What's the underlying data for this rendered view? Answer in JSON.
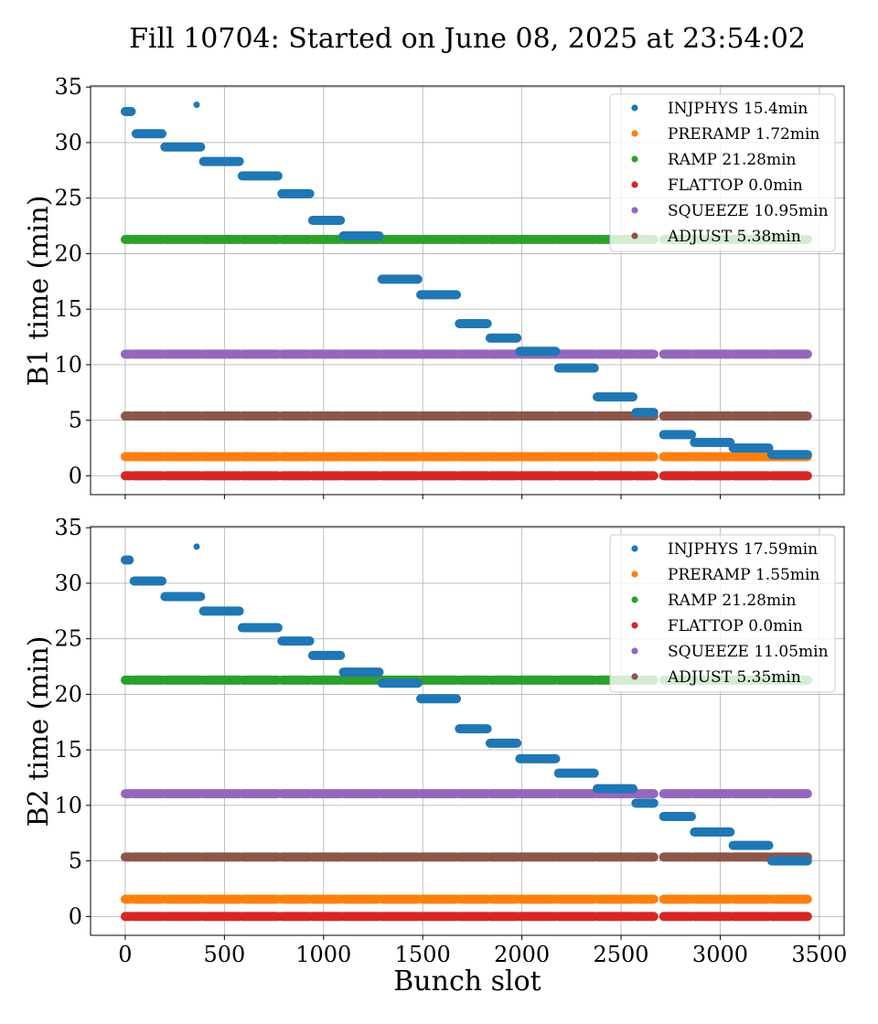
{
  "chart_data": {
    "type": "scatter",
    "title": "Fill 10704: Started on June 08, 2025 at 23:54:02",
    "xlabel": "Bunch slot",
    "xlim": [
      -175,
      3625
    ],
    "xticks": [
      0,
      500,
      1000,
      1500,
      2000,
      2500,
      3000,
      3500
    ],
    "grid": true,
    "legend_position": "top-right",
    "colors": {
      "INJPHYS": "#1f77b4",
      "PRERAMP": "#ff7f0e",
      "RAMP": "#2ca02c",
      "FLATTOP": "#d62728",
      "SQUEEZE": "#9467bd",
      "ADJUST": "#8c564b"
    },
    "panels": [
      {
        "ylabel": "B1 time (min)",
        "ylim": [
          -1.7,
          35.1
        ],
        "yticks": [
          0,
          5,
          10,
          15,
          20,
          25,
          30,
          35
        ],
        "legend": [
          {
            "name": "INJPHYS",
            "label": "INJPHYS 15.4min"
          },
          {
            "name": "PRERAMP",
            "label": "PRERAMP 1.72min"
          },
          {
            "name": "RAMP",
            "label": "RAMP 21.28min"
          },
          {
            "name": "FLATTOP",
            "label": "FLATTOP 0.0min"
          },
          {
            "name": "SQUEEZE",
            "label": "SQUEEZE 10.95min"
          },
          {
            "name": "ADJUST",
            "label": "ADJUST 5.38min"
          }
        ],
        "constant_series": [
          {
            "name": "PRERAMP",
            "y": 1.72
          },
          {
            "name": "RAMP",
            "y": 21.28
          },
          {
            "name": "FLATTOP",
            "y": 0.0
          },
          {
            "name": "SQUEEZE",
            "y": 10.95
          },
          {
            "name": "ADJUST",
            "y": 5.38
          }
        ],
        "injphys_segments": [
          {
            "x0": 0,
            "x1": 30,
            "y": 32.8
          },
          {
            "x0": 55,
            "x1": 185,
            "y": 30.8
          },
          {
            "x0": 200,
            "x1": 380,
            "y": 29.6
          },
          {
            "x0": 395,
            "x1": 575,
            "y": 28.3
          },
          {
            "x0": 590,
            "x1": 770,
            "y": 27.0
          },
          {
            "x0": 790,
            "x1": 930,
            "y": 25.4
          },
          {
            "x0": 945,
            "x1": 1085,
            "y": 23.0
          },
          {
            "x0": 1100,
            "x1": 1280,
            "y": 21.6
          },
          {
            "x0": 1295,
            "x1": 1475,
            "y": 17.7
          },
          {
            "x0": 1490,
            "x1": 1670,
            "y": 16.3
          },
          {
            "x0": 1685,
            "x1": 1825,
            "y": 13.7
          },
          {
            "x0": 1840,
            "x1": 1975,
            "y": 12.4
          },
          {
            "x0": 1990,
            "x1": 2170,
            "y": 11.2
          },
          {
            "x0": 2185,
            "x1": 2365,
            "y": 9.7
          },
          {
            "x0": 2380,
            "x1": 2560,
            "y": 7.1
          },
          {
            "x0": 2575,
            "x1": 2665,
            "y": 5.7
          },
          {
            "x0": 2715,
            "x1": 2855,
            "y": 3.7
          },
          {
            "x0": 2870,
            "x1": 3050,
            "y": 3.0
          },
          {
            "x0": 3065,
            "x1": 3245,
            "y": 2.5
          },
          {
            "x0": 3260,
            "x1": 3440,
            "y": 1.9
          }
        ],
        "injphys_points": [
          {
            "x": 360,
            "y": 33.4
          }
        ]
      },
      {
        "ylabel": "B2 time (min)",
        "ylim": [
          -1.7,
          35.1
        ],
        "yticks": [
          0,
          5,
          10,
          15,
          20,
          25,
          30,
          35
        ],
        "legend": [
          {
            "name": "INJPHYS",
            "label": "INJPHYS 17.59min"
          },
          {
            "name": "PRERAMP",
            "label": "PRERAMP 1.55min"
          },
          {
            "name": "RAMP",
            "label": "RAMP 21.28min"
          },
          {
            "name": "FLATTOP",
            "label": "FLATTOP 0.0min"
          },
          {
            "name": "SQUEEZE",
            "label": "SQUEEZE 11.05min"
          },
          {
            "name": "ADJUST",
            "label": "ADJUST 5.35min"
          }
        ],
        "constant_series": [
          {
            "name": "PRERAMP",
            "y": 1.55
          },
          {
            "name": "RAMP",
            "y": 21.28
          },
          {
            "name": "FLATTOP",
            "y": 0.0
          },
          {
            "name": "SQUEEZE",
            "y": 11.05
          },
          {
            "name": "ADJUST",
            "y": 5.35
          }
        ],
        "injphys_segments": [
          {
            "x0": 0,
            "x1": 20,
            "y": 32.1
          },
          {
            "x0": 45,
            "x1": 185,
            "y": 30.2
          },
          {
            "x0": 200,
            "x1": 380,
            "y": 28.8
          },
          {
            "x0": 395,
            "x1": 575,
            "y": 27.5
          },
          {
            "x0": 590,
            "x1": 770,
            "y": 26.0
          },
          {
            "x0": 790,
            "x1": 930,
            "y": 24.8
          },
          {
            "x0": 945,
            "x1": 1085,
            "y": 23.5
          },
          {
            "x0": 1100,
            "x1": 1280,
            "y": 22.0
          },
          {
            "x0": 1295,
            "x1": 1475,
            "y": 21.0
          },
          {
            "x0": 1490,
            "x1": 1670,
            "y": 19.6
          },
          {
            "x0": 1685,
            "x1": 1825,
            "y": 16.9
          },
          {
            "x0": 1840,
            "x1": 1975,
            "y": 15.6
          },
          {
            "x0": 1990,
            "x1": 2170,
            "y": 14.2
          },
          {
            "x0": 2185,
            "x1": 2365,
            "y": 12.9
          },
          {
            "x0": 2380,
            "x1": 2560,
            "y": 11.5
          },
          {
            "x0": 2575,
            "x1": 2665,
            "y": 10.2
          },
          {
            "x0": 2715,
            "x1": 2855,
            "y": 9.0
          },
          {
            "x0": 2870,
            "x1": 3050,
            "y": 7.6
          },
          {
            "x0": 3065,
            "x1": 3245,
            "y": 6.4
          },
          {
            "x0": 3260,
            "x1": 3440,
            "y": 5.0
          }
        ],
        "injphys_points": [
          {
            "x": 360,
            "y": 33.3
          }
        ]
      }
    ],
    "fill_segments": [
      {
        "x0": 0,
        "x1": 30
      },
      {
        "x0": 45,
        "x1": 185
      },
      {
        "x0": 200,
        "x1": 380
      },
      {
        "x0": 395,
        "x1": 575
      },
      {
        "x0": 590,
        "x1": 770
      },
      {
        "x0": 790,
        "x1": 930
      },
      {
        "x0": 945,
        "x1": 1085
      },
      {
        "x0": 1100,
        "x1": 1280
      },
      {
        "x0": 1295,
        "x1": 1475
      },
      {
        "x0": 1490,
        "x1": 1670
      },
      {
        "x0": 1685,
        "x1": 1825
      },
      {
        "x0": 1840,
        "x1": 1975
      },
      {
        "x0": 1990,
        "x1": 2170
      },
      {
        "x0": 2185,
        "x1": 2365
      },
      {
        "x0": 2380,
        "x1": 2560
      },
      {
        "x0": 2575,
        "x1": 2665
      },
      {
        "x0": 2715,
        "x1": 2855
      },
      {
        "x0": 2870,
        "x1": 3050
      },
      {
        "x0": 3065,
        "x1": 3245
      },
      {
        "x0": 3260,
        "x1": 3440
      }
    ]
  }
}
